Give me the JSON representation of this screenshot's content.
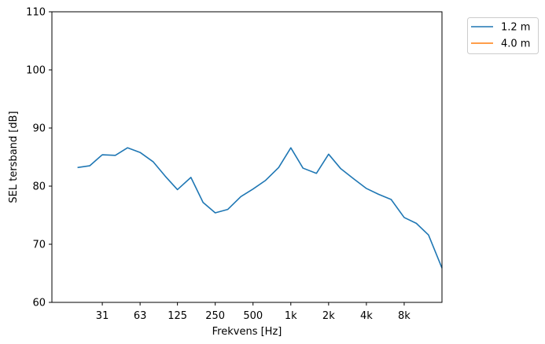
{
  "chart_data": {
    "type": "line",
    "xlabel": "Frekvens [Hz]",
    "ylabel": "SEL tersband [dB]",
    "x_scale": "log",
    "x_tick_labels": [
      "31",
      "63",
      "125",
      "250",
      "500",
      "1k",
      "2k",
      "4k",
      "8k"
    ],
    "x_tick_values": [
      31.5,
      63,
      125,
      250,
      500,
      1000,
      2000,
      4000,
      8000
    ],
    "xlim": [
      12.5,
      16000
    ],
    "ylim": [
      60,
      110
    ],
    "y_ticks": [
      60,
      70,
      80,
      90,
      100,
      110
    ],
    "grid": false,
    "legend_position": "outside-top-right",
    "series": [
      {
        "name": "1.2 m",
        "color": "#1f77b4",
        "x": [
          20,
          25,
          31.5,
          40,
          50,
          63,
          80,
          100,
          125,
          160,
          200,
          250,
          315,
          400,
          500,
          630,
          800,
          1000,
          1250,
          1600,
          2000,
          2500,
          3150,
          4000,
          5000,
          6300,
          8000,
          10000,
          12500,
          16000
        ],
        "y": [
          83.2,
          83.5,
          85.4,
          85.3,
          86.6,
          85.8,
          84.2,
          81.7,
          79.4,
          81.5,
          77.2,
          75.4,
          76.0,
          78.2,
          79.5,
          81.0,
          83.2,
          86.6,
          83.1,
          82.2,
          85.5,
          83.0,
          81.3,
          79.6,
          78.6,
          77.7,
          74.6,
          73.6,
          71.6,
          65.9
        ]
      },
      {
        "name": "4.0 m",
        "color": "#ff7f0e",
        "x": [],
        "y": []
      }
    ]
  }
}
